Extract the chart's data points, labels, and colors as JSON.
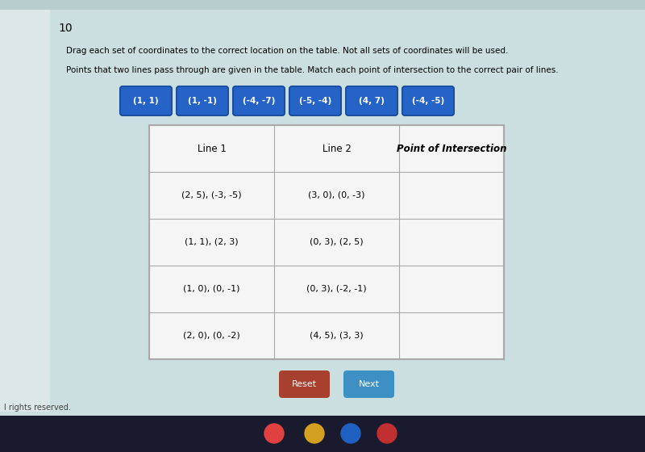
{
  "question_num": "10",
  "instruction1": "Drag each set of coordinates to the correct location on the table. Not all sets of coordinates will be used.",
  "instruction2": "Points that two lines pass through are given in the table. Match each point of intersection to the correct pair of lines.",
  "chips": [
    "(1, 1)",
    "(1, -1)",
    "(-4, -7)",
    "(-5, -4)",
    "(4, 7)",
    "(-4, -5)"
  ],
  "chip_color": "#2563c7",
  "chip_border_color": "#1a4fa0",
  "chip_text_color": "#ffffff",
  "table_headers": [
    "Line 1",
    "Line 2",
    "Point of Intersection"
  ],
  "table_rows": [
    [
      "(2, 5), (-3, -5)",
      "(3, 0), (0, -3)",
      ""
    ],
    [
      "(1, 1), (2, 3)",
      "(0, 3), (2, 5)",
      ""
    ],
    [
      "(1, 0), (0, -1)",
      "(0, 3), (-2, -1)",
      ""
    ],
    [
      "(2, 0), (0, -2)",
      "(4, 5), (3, 3)",
      ""
    ]
  ],
  "reset_btn_color": "#a84030",
  "next_btn_color": "#3d8fc4",
  "bg_color": "#ccdfe0",
  "white_panel_color": "#e8f0f0",
  "table_bg": "#f5f5f5",
  "border_color": "#aaaaaa",
  "footer_text": "l rights reserved.",
  "taskbar_color": "#222222",
  "top_bar_color": "#c8d8d8"
}
